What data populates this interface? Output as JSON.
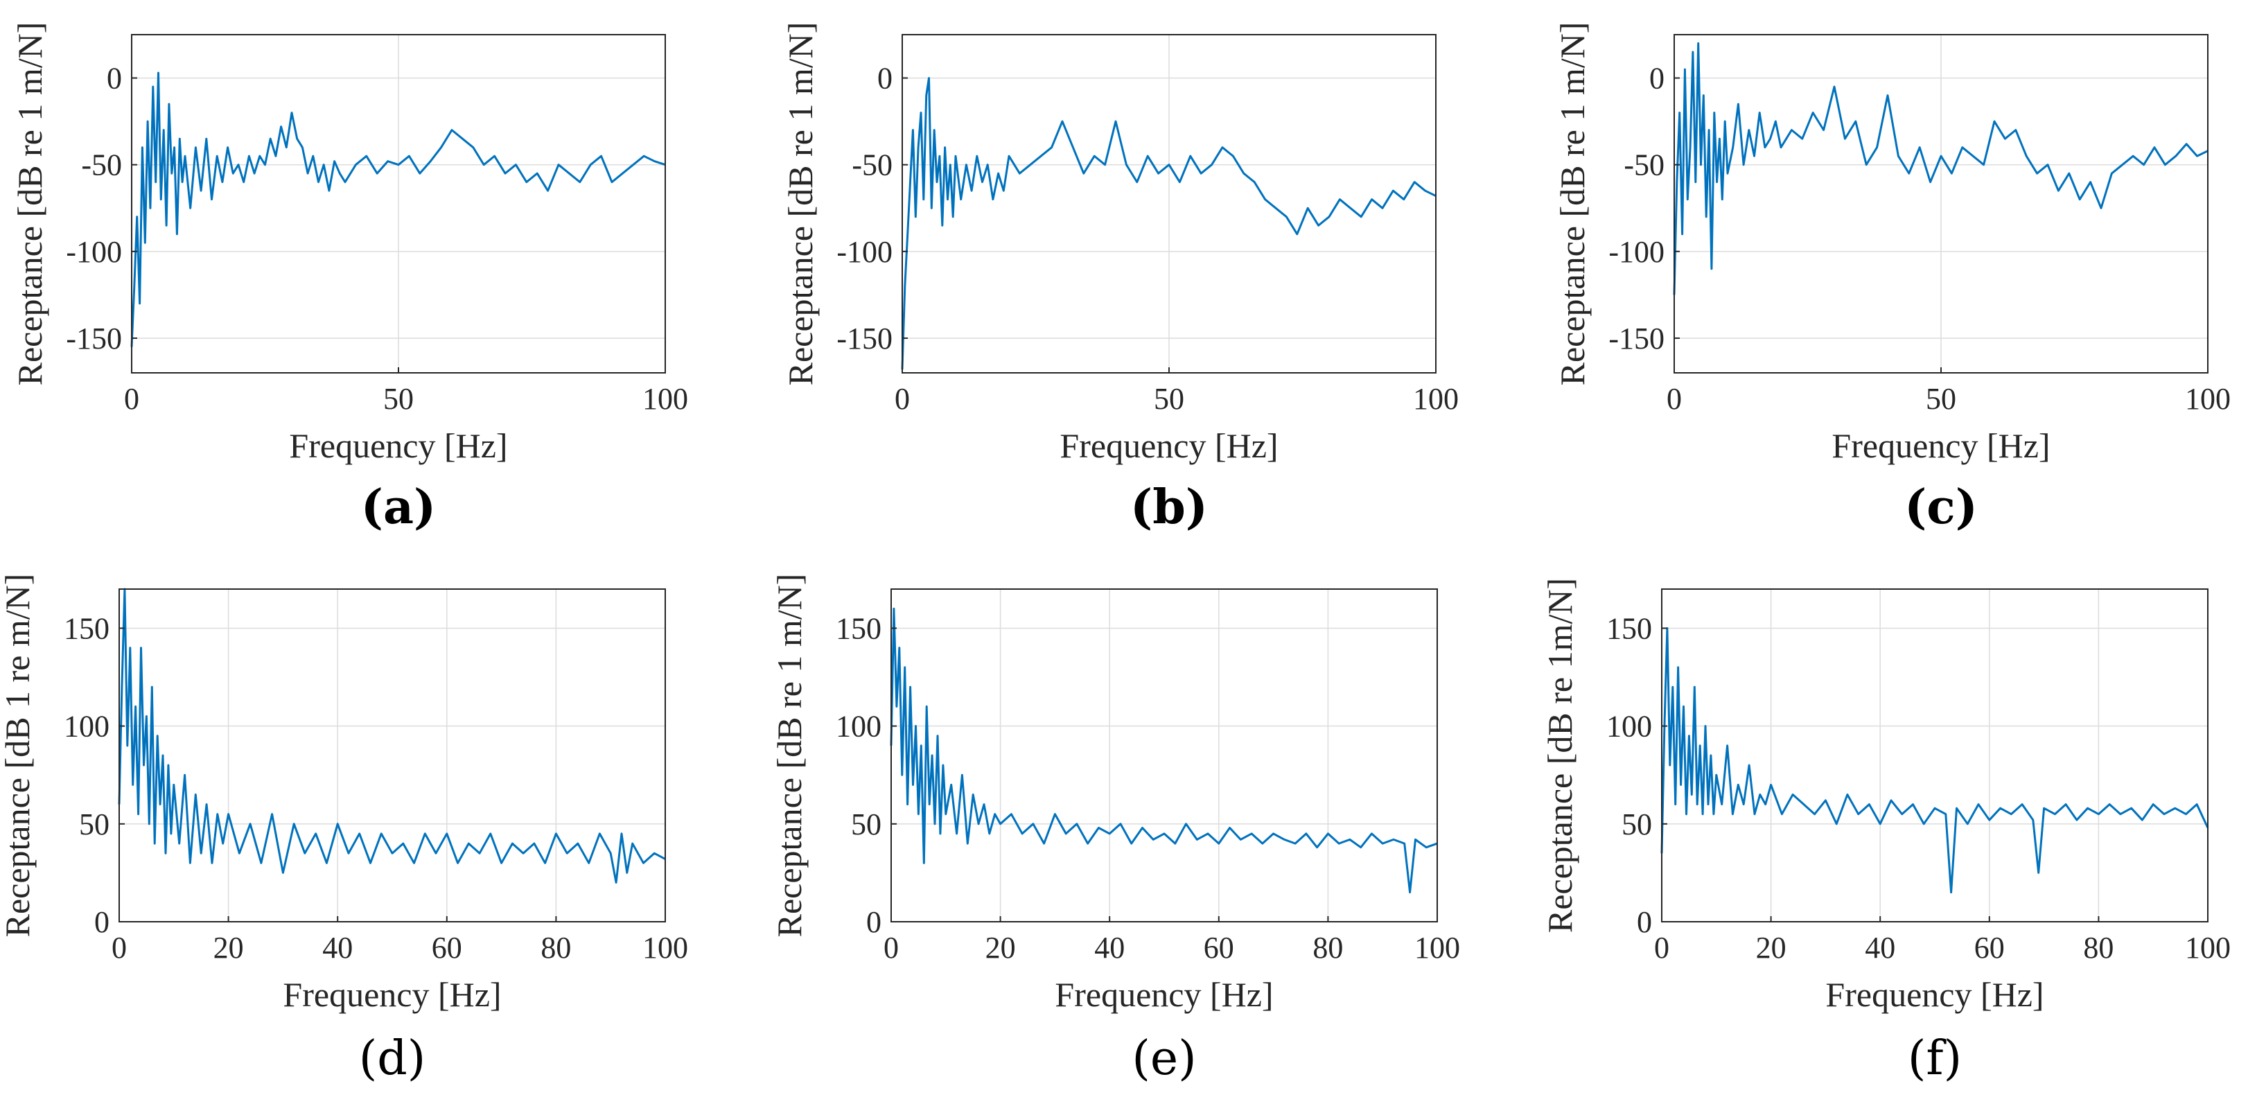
{
  "colors": {
    "series": "#0072bd",
    "axis": "#262626",
    "grid": "#dcdcdc"
  },
  "chart_data": [
    {
      "id": "a",
      "type": "line",
      "panel_label": "(a)",
      "bold_label": true,
      "xlabel": "Frequency [Hz]",
      "ylabel": "Receptance [dB re 1 m/N]",
      "xlim": [
        0,
        100
      ],
      "ylim": [
        -170,
        25
      ],
      "xticks": [
        0,
        50,
        100
      ],
      "xtick_labels": [
        "0",
        "50",
        "100"
      ],
      "yticks": [
        0,
        -50,
        -100,
        -150
      ],
      "ytick_labels": [
        "0",
        "-50",
        "-100",
        "-150"
      ],
      "grid": true,
      "series": [
        {
          "name": "receptance",
          "x": [
            0,
            0.5,
            1,
            1.5,
            2,
            2.5,
            3,
            3.5,
            4,
            4.5,
            5,
            5.5,
            6,
            6.5,
            7,
            7.5,
            8,
            8.5,
            9,
            9.5,
            10,
            11,
            12,
            13,
            14,
            15,
            16,
            17,
            18,
            19,
            20,
            21,
            22,
            23,
            24,
            25,
            26,
            27,
            28,
            29,
            30,
            31,
            32,
            33,
            34,
            35,
            36,
            37,
            38,
            39,
            40,
            42,
            44,
            46,
            48,
            50,
            52,
            54,
            56,
            58,
            60,
            62,
            64,
            66,
            68,
            70,
            72,
            74,
            76,
            78,
            80,
            82,
            84,
            86,
            88,
            90,
            92,
            94,
            96,
            98,
            100
          ],
          "y": [
            -155,
            -120,
            -80,
            -130,
            -40,
            -95,
            -25,
            -75,
            -5,
            -60,
            3,
            -70,
            -30,
            -85,
            -15,
            -55,
            -40,
            -90,
            -35,
            -60,
            -45,
            -75,
            -40,
            -65,
            -35,
            -70,
            -45,
            -60,
            -40,
            -55,
            -50,
            -60,
            -45,
            -55,
            -45,
            -50,
            -35,
            -45,
            -28,
            -40,
            -20,
            -35,
            -40,
            -55,
            -45,
            -60,
            -50,
            -65,
            -48,
            -55,
            -60,
            -50,
            -45,
            -55,
            -48,
            -50,
            -45,
            -55,
            -48,
            -40,
            -30,
            -35,
            -40,
            -50,
            -45,
            -55,
            -50,
            -60,
            -55,
            -65,
            -50,
            -55,
            -60,
            -50,
            -45,
            -60,
            -55,
            -50,
            -45,
            -48,
            -50
          ]
        }
      ]
    },
    {
      "id": "b",
      "type": "line",
      "panel_label": "(b)",
      "bold_label": true,
      "xlabel": "Frequency [Hz]",
      "ylabel": "Receptance [dB re 1 m/N]",
      "xlim": [
        0,
        100
      ],
      "ylim": [
        -170,
        25
      ],
      "xticks": [
        0,
        50,
        100
      ],
      "xtick_labels": [
        "0",
        "50",
        "100"
      ],
      "yticks": [
        0,
        -50,
        -100,
        -150
      ],
      "ytick_labels": [
        "0",
        "-50",
        "-100",
        "-150"
      ],
      "grid": true,
      "series": [
        {
          "name": "receptance",
          "x": [
            0,
            0.5,
            1,
            1.5,
            2,
            2.5,
            3,
            3.5,
            4,
            4.5,
            5,
            5.5,
            6,
            6.5,
            7,
            7.5,
            8,
            8.5,
            9,
            9.5,
            10,
            11,
            12,
            13,
            14,
            15,
            16,
            17,
            18,
            19,
            20,
            22,
            24,
            26,
            28,
            30,
            32,
            34,
            36,
            38,
            40,
            42,
            44,
            46,
            48,
            50,
            52,
            54,
            56,
            58,
            60,
            62,
            64,
            66,
            68,
            70,
            72,
            74,
            76,
            78,
            80,
            82,
            84,
            86,
            88,
            90,
            92,
            94,
            96,
            98,
            100
          ],
          "y": [
            -168,
            -120,
            -90,
            -60,
            -30,
            -80,
            -40,
            -20,
            -70,
            -10,
            0,
            -75,
            -30,
            -60,
            -45,
            -85,
            -40,
            -70,
            -50,
            -80,
            -45,
            -70,
            -50,
            -65,
            -45,
            -60,
            -50,
            -70,
            -55,
            -65,
            -45,
            -55,
            -50,
            -45,
            -40,
            -25,
            -40,
            -55,
            -45,
            -50,
            -25,
            -50,
            -60,
            -45,
            -55,
            -50,
            -60,
            -45,
            -55,
            -50,
            -40,
            -45,
            -55,
            -60,
            -70,
            -75,
            -80,
            -90,
            -75,
            -85,
            -80,
            -70,
            -75,
            -80,
            -70,
            -75,
            -65,
            -70,
            -60,
            -65,
            -68
          ]
        }
      ]
    },
    {
      "id": "c",
      "type": "line",
      "panel_label": "(c)",
      "bold_label": true,
      "xlabel": "Frequency [Hz]",
      "ylabel": "Receptance [dB re 1 m/N]",
      "xlim": [
        0,
        100
      ],
      "ylim": [
        -170,
        25
      ],
      "xticks": [
        0,
        50,
        100
      ],
      "xtick_labels": [
        "0",
        "50",
        "100"
      ],
      "yticks": [
        0,
        -50,
        -100,
        -150
      ],
      "ytick_labels": [
        "0",
        "-50",
        "-100",
        "-150"
      ],
      "grid": true,
      "series": [
        {
          "name": "receptance",
          "x": [
            0,
            0.5,
            1,
            1.5,
            2,
            2.5,
            3,
            3.5,
            4,
            4.5,
            5,
            5.5,
            6,
            6.5,
            7,
            7.5,
            8,
            8.5,
            9,
            9.5,
            10,
            11,
            12,
            13,
            14,
            15,
            16,
            17,
            18,
            19,
            20,
            22,
            24,
            26,
            28,
            30,
            32,
            34,
            36,
            38,
            40,
            42,
            44,
            46,
            48,
            50,
            52,
            54,
            56,
            58,
            60,
            62,
            64,
            66,
            68,
            70,
            72,
            74,
            76,
            78,
            80,
            82,
            84,
            86,
            88,
            90,
            92,
            94,
            96,
            98,
            100
          ],
          "y": [
            -125,
            -60,
            -20,
            -90,
            5,
            -70,
            -40,
            15,
            -60,
            20,
            -50,
            -10,
            -80,
            -30,
            -110,
            -20,
            -60,
            -35,
            -70,
            -25,
            -55,
            -40,
            -15,
            -50,
            -30,
            -45,
            -20,
            -40,
            -35,
            -25,
            -40,
            -30,
            -35,
            -20,
            -30,
            -5,
            -35,
            -25,
            -50,
            -40,
            -10,
            -45,
            -55,
            -40,
            -60,
            -45,
            -55,
            -40,
            -45,
            -50,
            -25,
            -35,
            -30,
            -45,
            -55,
            -50,
            -65,
            -55,
            -70,
            -60,
            -75,
            -55,
            -50,
            -45,
            -50,
            -40,
            -50,
            -45,
            -38,
            -45,
            -42
          ]
        }
      ]
    },
    {
      "id": "d",
      "type": "line",
      "panel_label": "(d)",
      "bold_label": false,
      "xlabel": "Frequency [Hz]",
      "ylabel": "Receptance [dB 1 re m/N]",
      "xlim": [
        0,
        100
      ],
      "ylim": [
        0,
        170
      ],
      "xticks": [
        0,
        20,
        40,
        60,
        80,
        100
      ],
      "xtick_labels": [
        "0",
        "20",
        "40",
        "60",
        "80",
        "100"
      ],
      "yticks": [
        0,
        50,
        100,
        150
      ],
      "ytick_labels": [
        "0",
        "50",
        "100",
        "150"
      ],
      "grid": true,
      "series": [
        {
          "name": "receptance",
          "x": [
            0,
            0.5,
            1,
            1.5,
            2,
            2.5,
            3,
            3.5,
            4,
            4.5,
            5,
            5.5,
            6,
            6.5,
            7,
            7.5,
            8,
            8.5,
            9,
            9.5,
            10,
            11,
            12,
            13,
            14,
            15,
            16,
            17,
            18,
            19,
            20,
            22,
            24,
            26,
            28,
            30,
            32,
            34,
            36,
            38,
            40,
            42,
            44,
            46,
            48,
            50,
            52,
            54,
            56,
            58,
            60,
            62,
            64,
            66,
            68,
            70,
            72,
            74,
            76,
            78,
            80,
            82,
            84,
            86,
            88,
            90,
            91,
            92,
            93,
            94,
            96,
            98,
            100
          ],
          "y": [
            60,
            120,
            170,
            90,
            140,
            70,
            110,
            55,
            140,
            80,
            105,
            50,
            120,
            40,
            95,
            60,
            85,
            35,
            80,
            45,
            70,
            40,
            75,
            30,
            65,
            35,
            60,
            30,
            55,
            40,
            55,
            35,
            50,
            30,
            55,
            25,
            50,
            35,
            45,
            30,
            50,
            35,
            45,
            30,
            45,
            35,
            40,
            30,
            45,
            35,
            45,
            30,
            40,
            35,
            45,
            30,
            40,
            35,
            40,
            30,
            45,
            35,
            40,
            30,
            45,
            35,
            20,
            45,
            25,
            40,
            30,
            35,
            32
          ]
        }
      ]
    },
    {
      "id": "e",
      "type": "line",
      "panel_label": "(e)",
      "bold_label": false,
      "xlabel": "Frequency [Hz]",
      "ylabel": "Receptance [dB re 1 m/N]",
      "xlim": [
        0,
        100
      ],
      "ylim": [
        0,
        170
      ],
      "xticks": [
        0,
        20,
        40,
        60,
        80,
        100
      ],
      "xtick_labels": [
        "0",
        "20",
        "40",
        "60",
        "80",
        "100"
      ],
      "yticks": [
        0,
        50,
        100,
        150
      ],
      "ytick_labels": [
        "0",
        "50",
        "100",
        "150"
      ],
      "grid": true,
      "series": [
        {
          "name": "receptance",
          "x": [
            0,
            0.5,
            1,
            1.5,
            2,
            2.5,
            3,
            3.5,
            4,
            4.5,
            5,
            5.5,
            6,
            6.5,
            7,
            7.5,
            8,
            8.5,
            9,
            9.5,
            10,
            11,
            12,
            13,
            14,
            15,
            16,
            17,
            18,
            19,
            20,
            22,
            24,
            26,
            28,
            30,
            32,
            34,
            36,
            38,
            40,
            42,
            44,
            46,
            48,
            50,
            52,
            54,
            56,
            58,
            60,
            62,
            64,
            66,
            68,
            70,
            72,
            74,
            76,
            78,
            80,
            82,
            84,
            86,
            88,
            90,
            92,
            94,
            95,
            96,
            98,
            100
          ],
          "y": [
            90,
            160,
            110,
            140,
            75,
            130,
            60,
            120,
            70,
            100,
            55,
            90,
            30,
            110,
            60,
            85,
            50,
            95,
            45,
            80,
            55,
            70,
            45,
            75,
            40,
            65,
            50,
            60,
            45,
            55,
            50,
            55,
            45,
            50,
            40,
            55,
            45,
            50,
            40,
            48,
            45,
            50,
            40,
            48,
            42,
            45,
            40,
            50,
            42,
            45,
            40,
            48,
            42,
            45,
            40,
            45,
            42,
            40,
            45,
            38,
            45,
            40,
            42,
            38,
            45,
            40,
            42,
            40,
            15,
            42,
            38,
            40
          ]
        }
      ]
    },
    {
      "id": "f",
      "type": "line",
      "panel_label": "(f)",
      "bold_label": false,
      "xlabel": "Frequency [Hz]",
      "ylabel": "Receptance [dB re 1m/N]",
      "xlim": [
        0,
        100
      ],
      "ylim": [
        0,
        170
      ],
      "xticks": [
        0,
        20,
        40,
        60,
        80,
        100
      ],
      "xtick_labels": [
        "0",
        "20",
        "40",
        "60",
        "80",
        "100"
      ],
      "yticks": [
        0,
        50,
        100,
        150
      ],
      "ytick_labels": [
        "0",
        "50",
        "100",
        "150"
      ],
      "grid": true,
      "series": [
        {
          "name": "receptance",
          "x": [
            0,
            0.5,
            1,
            1.5,
            2,
            2.5,
            3,
            3.5,
            4,
            4.5,
            5,
            5.5,
            6,
            6.5,
            7,
            7.5,
            8,
            8.5,
            9,
            9.5,
            10,
            11,
            12,
            13,
            14,
            15,
            16,
            17,
            18,
            19,
            20,
            22,
            24,
            26,
            28,
            30,
            32,
            34,
            36,
            38,
            40,
            42,
            44,
            46,
            48,
            50,
            52,
            53,
            54,
            56,
            58,
            60,
            62,
            64,
            66,
            68,
            69,
            70,
            72,
            74,
            76,
            78,
            80,
            82,
            84,
            86,
            88,
            90,
            92,
            94,
            96,
            98,
            100
          ],
          "y": [
            35,
            100,
            150,
            80,
            120,
            60,
            130,
            70,
            110,
            55,
            95,
            65,
            120,
            60,
            90,
            55,
            100,
            60,
            85,
            55,
            75,
            60,
            90,
            55,
            70,
            60,
            80,
            55,
            65,
            60,
            70,
            55,
            65,
            60,
            55,
            62,
            50,
            65,
            55,
            60,
            50,
            62,
            55,
            60,
            50,
            58,
            55,
            15,
            58,
            50,
            60,
            52,
            58,
            55,
            60,
            52,
            25,
            58,
            55,
            60,
            52,
            58,
            55,
            60,
            55,
            58,
            52,
            60,
            55,
            58,
            55,
            60,
            48
          ]
        }
      ]
    }
  ]
}
